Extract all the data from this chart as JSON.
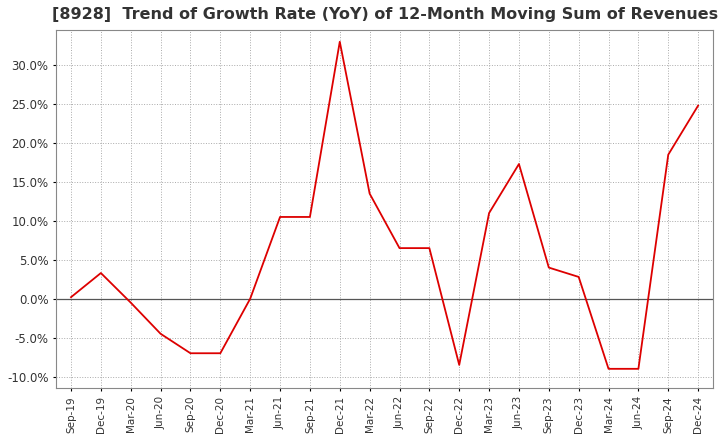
{
  "title": "[8928]  Trend of Growth Rate (YoY) of 12-Month Moving Sum of Revenues",
  "title_fontsize": 11.5,
  "line_color": "#dd0000",
  "background_color": "#ffffff",
  "grid_color": "#aaaaaa",
  "zero_line_color": "#555555",
  "border_color": "#888888",
  "ylim": [
    -0.115,
    0.345
  ],
  "yticks": [
    -0.1,
    -0.05,
    0.0,
    0.05,
    0.1,
    0.15,
    0.2,
    0.25,
    0.3
  ],
  "x_labels": [
    "Sep-19",
    "Dec-19",
    "Mar-20",
    "Jun-20",
    "Sep-20",
    "Dec-20",
    "Mar-21",
    "Jun-21",
    "Sep-21",
    "Dec-21",
    "Mar-22",
    "Jun-22",
    "Sep-22",
    "Dec-22",
    "Mar-23",
    "Jun-23",
    "Sep-23",
    "Dec-23",
    "Mar-24",
    "Jun-24",
    "Sep-24",
    "Dec-24"
  ],
  "y_values": [
    0.002,
    0.033,
    -0.005,
    -0.045,
    -0.07,
    -0.07,
    0.0,
    0.105,
    0.105,
    0.33,
    0.135,
    0.065,
    0.065,
    -0.085,
    0.11,
    0.173,
    0.04,
    0.028,
    -0.09,
    -0.09,
    0.185,
    0.248
  ]
}
